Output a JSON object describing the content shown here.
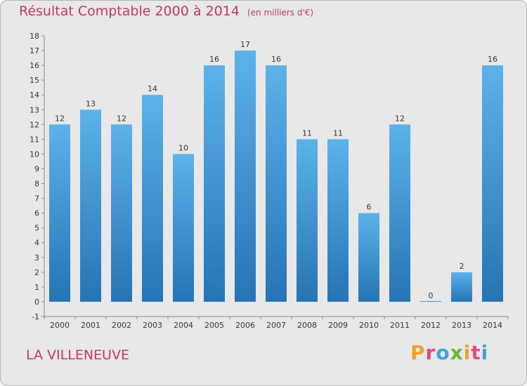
{
  "chart_data": {
    "type": "bar",
    "title": "Résultat Comptable 2000 à 2014",
    "subtitle": "(en milliers d'€)",
    "categories": [
      "2000",
      "2001",
      "2002",
      "2003",
      "2004",
      "2005",
      "2006",
      "2007",
      "2008",
      "2009",
      "2010",
      "2011",
      "2012",
      "2013",
      "2014"
    ],
    "values": [
      12,
      13,
      12,
      14,
      10,
      16,
      17,
      16,
      11,
      11,
      6,
      12,
      0,
      2,
      16
    ],
    "ylim": [
      -1,
      18
    ],
    "yticks": [
      -1,
      0,
      1,
      2,
      3,
      4,
      5,
      6,
      7,
      8,
      9,
      10,
      11,
      12,
      13,
      14,
      15,
      16,
      17,
      18
    ],
    "grid": false,
    "xlabel": "",
    "ylabel": "",
    "bar_color": "#3b8fd6"
  },
  "location": "LA VILLENEUVE",
  "logo_letters": [
    "P",
    "r",
    "o",
    "x",
    "i",
    "t",
    "i"
  ],
  "colors": {
    "title": "#c0395d",
    "background": "#e8e8e8"
  }
}
